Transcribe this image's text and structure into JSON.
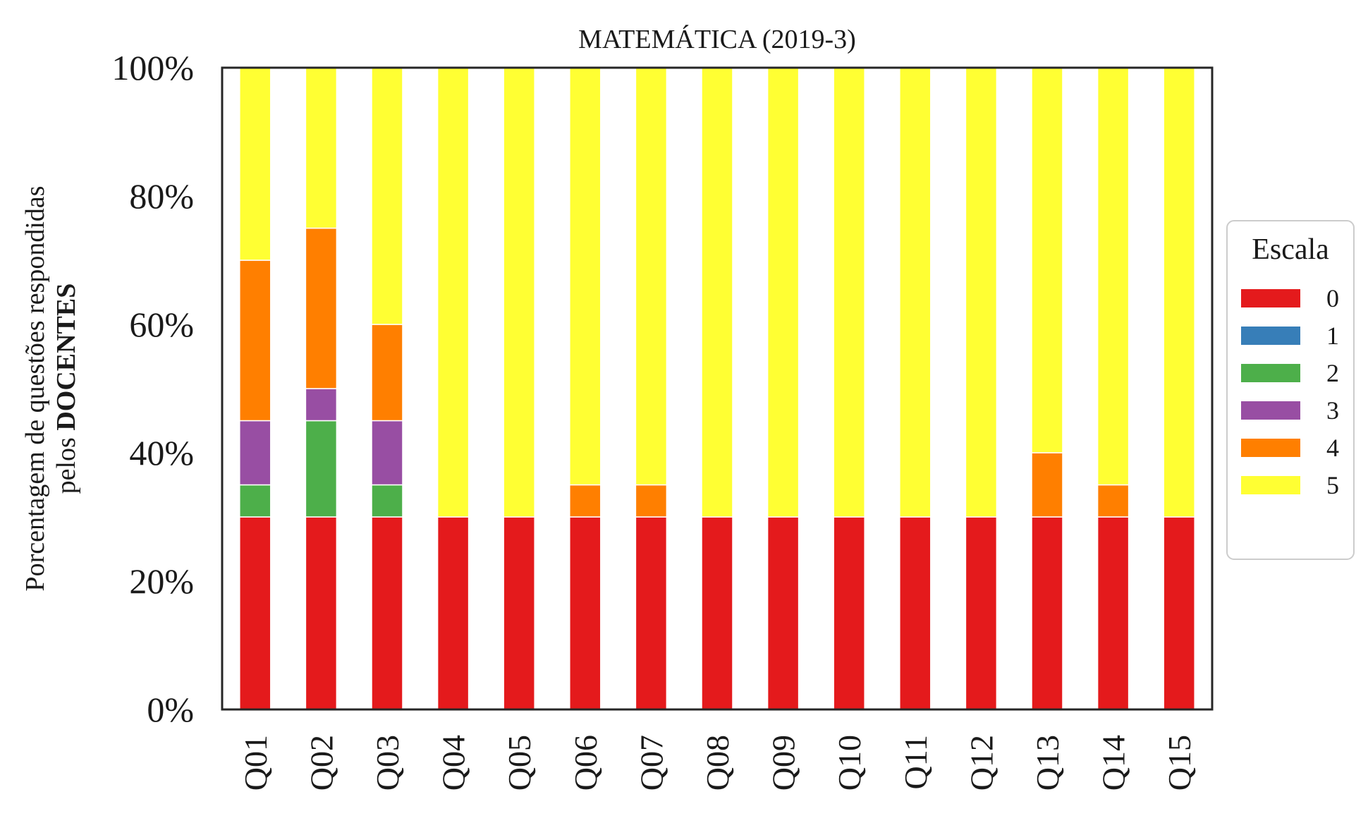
{
  "chart_data": {
    "type": "bar",
    "stacked": true,
    "title": "MATEMÁTICA (2019-3)",
    "ylabel_line1": "Porcentagem de questões respondidas",
    "ylabel_line2_prefix": "pelos ",
    "ylabel_line2_bold": "DOCENTES",
    "ylim": [
      0,
      100
    ],
    "yticks": [
      0,
      20,
      40,
      60,
      80,
      100
    ],
    "ytick_labels": [
      "0%",
      "20%",
      "40%",
      "60%",
      "80%",
      "100%"
    ],
    "grid": false,
    "legend_position": "right",
    "legend_title": "Escala",
    "categories": [
      "Q01",
      "Q02",
      "Q03",
      "Q04",
      "Q05",
      "Q06",
      "Q07",
      "Q08",
      "Q09",
      "Q10",
      "Q11",
      "Q12",
      "Q13",
      "Q14",
      "Q15"
    ],
    "series": [
      {
        "name": "0",
        "color": "#e41a1c",
        "values": [
          30,
          30,
          30,
          30,
          30,
          30,
          30,
          30,
          30,
          30,
          30,
          30,
          30,
          30,
          30
        ]
      },
      {
        "name": "1",
        "color": "#377eb8",
        "values": [
          0,
          0,
          0,
          0,
          0,
          0,
          0,
          0,
          0,
          0,
          0,
          0,
          0,
          0,
          0
        ]
      },
      {
        "name": "2",
        "color": "#4daf4a",
        "values": [
          5,
          15,
          5,
          0,
          0,
          0,
          0,
          0,
          0,
          0,
          0,
          0,
          0,
          0,
          0
        ]
      },
      {
        "name": "3",
        "color": "#984ea3",
        "values": [
          10,
          5,
          10,
          0,
          0,
          0,
          0,
          0,
          0,
          0,
          0,
          0,
          0,
          0,
          0
        ]
      },
      {
        "name": "4",
        "color": "#ff7f00",
        "values": [
          25,
          25,
          15,
          0,
          0,
          5,
          5,
          0,
          0,
          0,
          0,
          0,
          10,
          5,
          0
        ]
      },
      {
        "name": "5",
        "color": "#ffff33",
        "values": [
          30,
          25,
          40,
          70,
          70,
          65,
          65,
          70,
          70,
          70,
          70,
          70,
          60,
          65,
          70
        ]
      }
    ]
  }
}
